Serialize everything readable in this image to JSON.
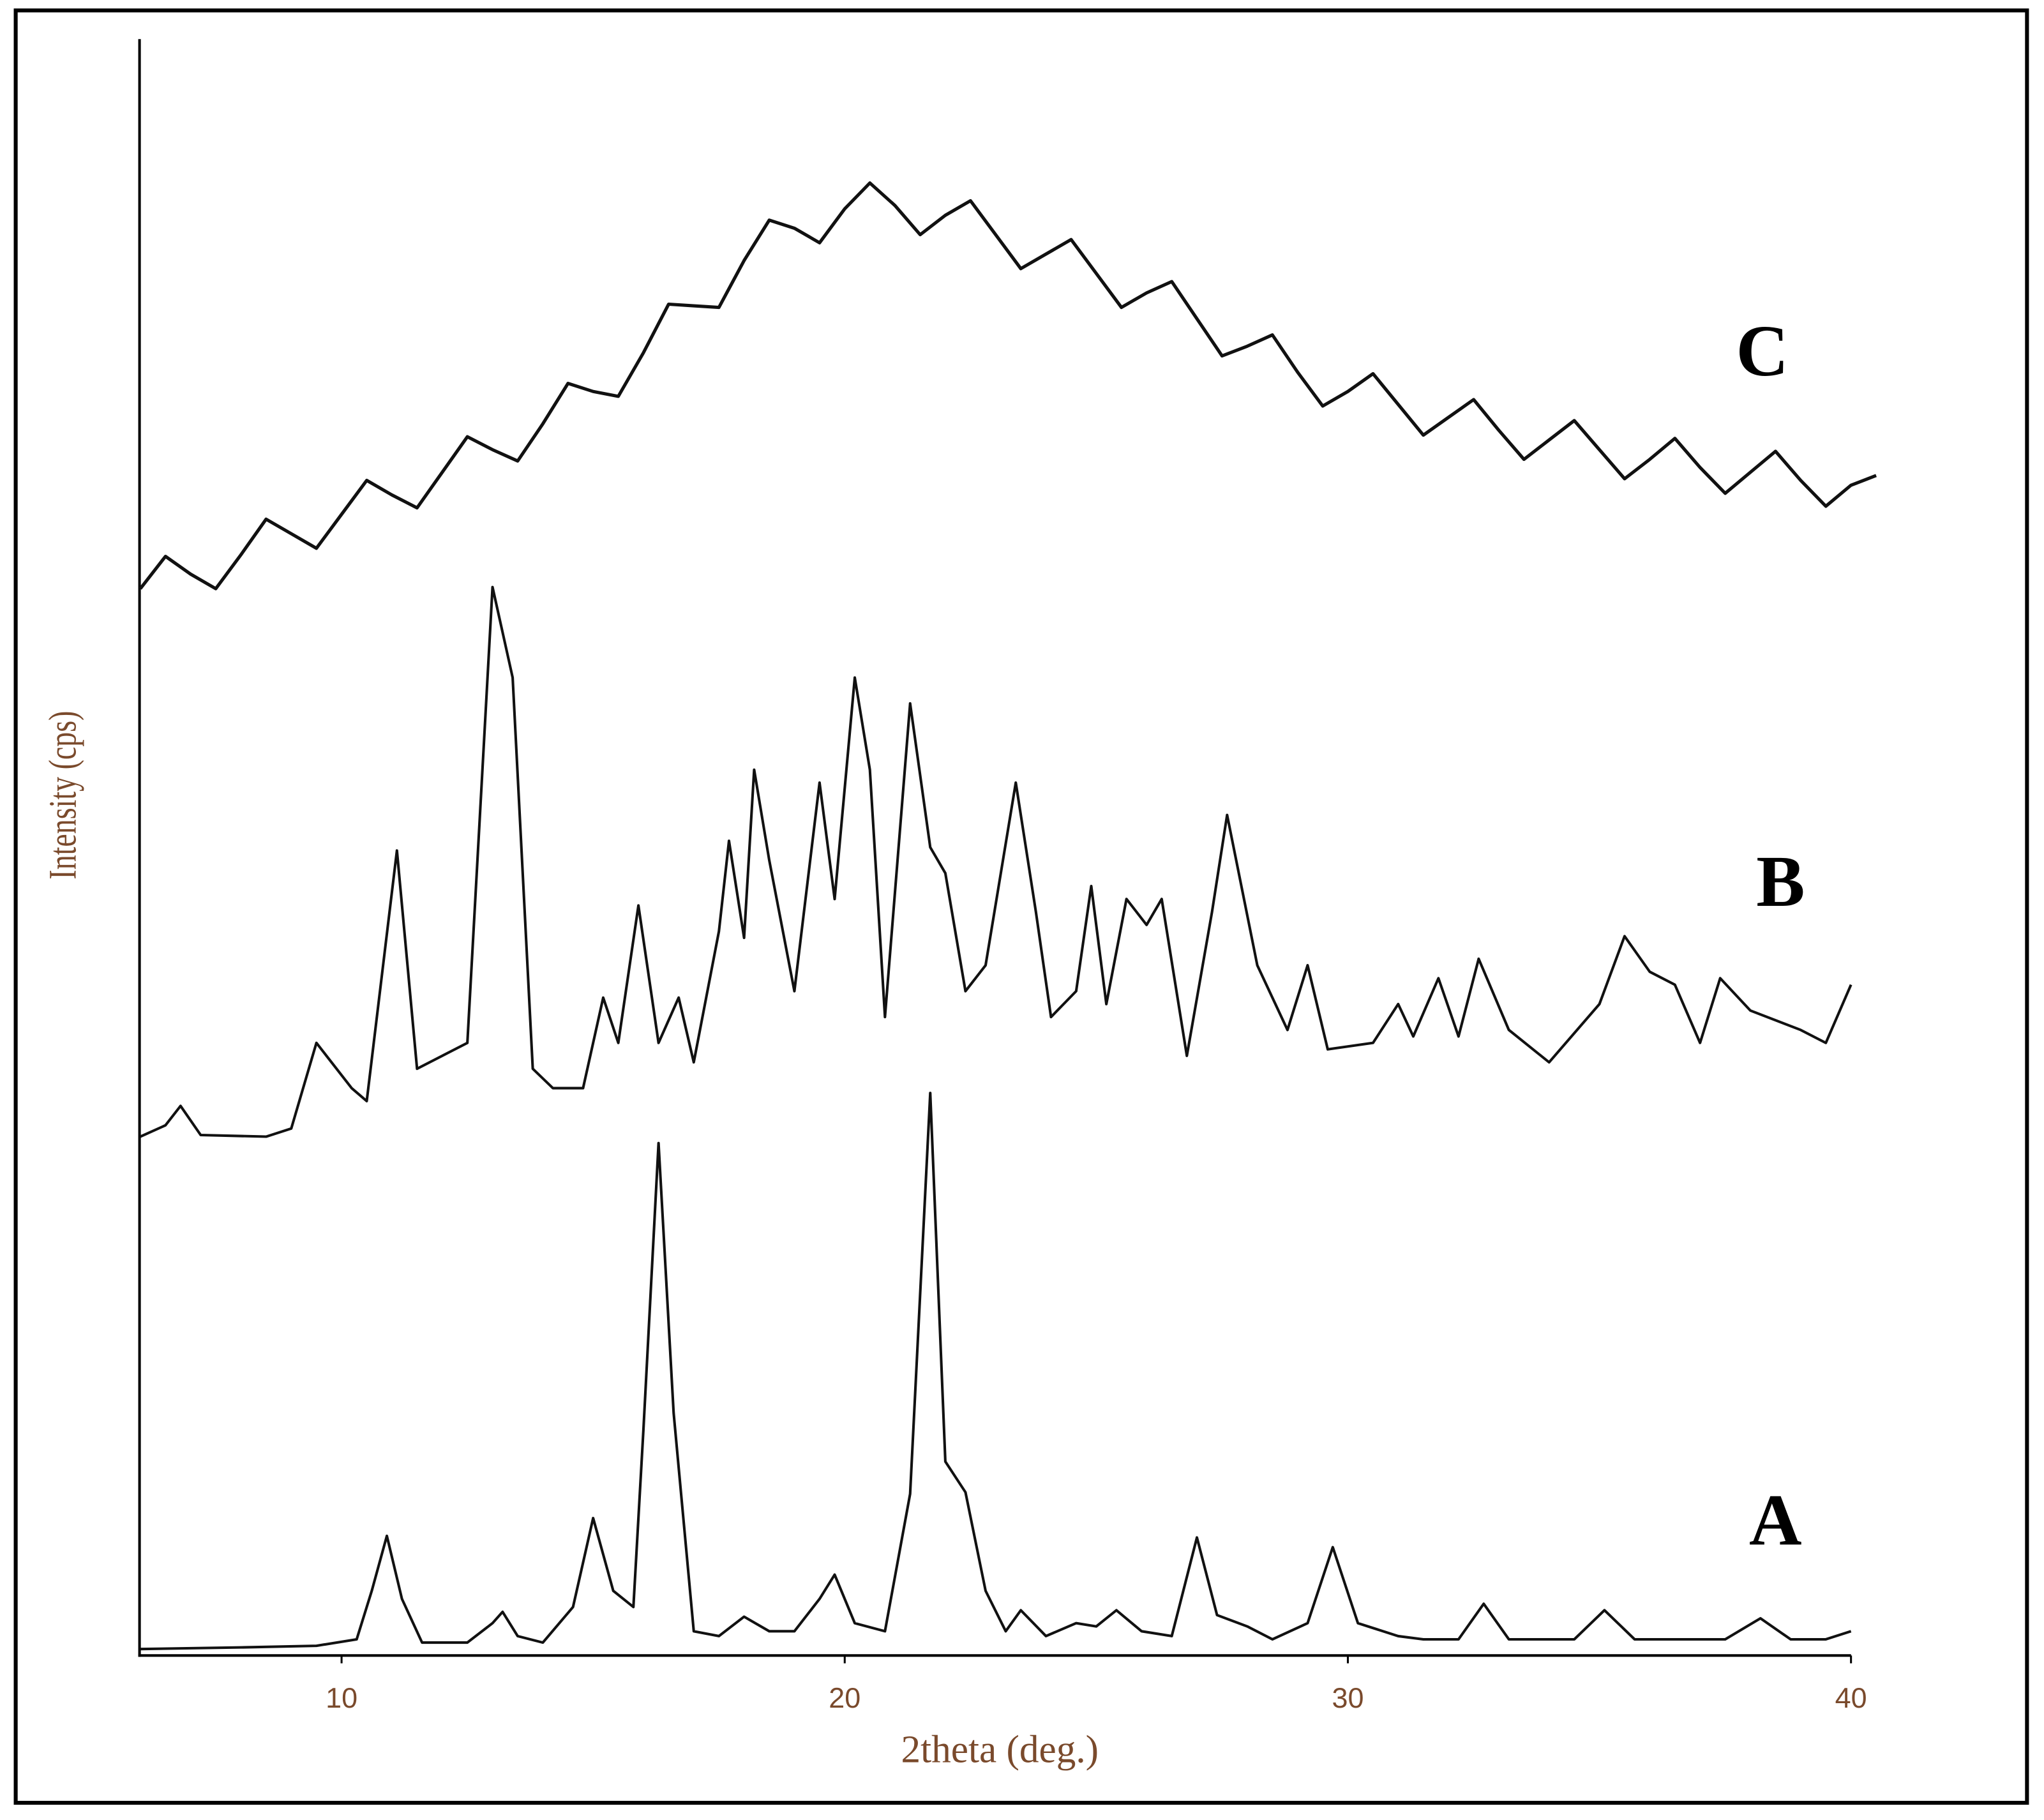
{
  "chart_data": {
    "type": "line",
    "xlabel": "2theta (deg.)",
    "ylabel": "Intensity (cps)",
    "xlim": [
      6,
      40.7
    ],
    "xticks": [
      10,
      20,
      30,
      40
    ],
    "ylim": [
      0,
      100
    ],
    "series": [
      {
        "name": "A",
        "color": "#111111",
        "x": [
          6,
          8,
          9.5,
          10.3,
          10.6,
          10.9,
          11.2,
          11.6,
          12.5,
          13.0,
          13.2,
          13.5,
          14.0,
          14.6,
          15.0,
          15.4,
          15.8,
          16.0,
          16.3,
          16.6,
          17.0,
          17.5,
          18.0,
          18.5,
          19.0,
          19.5,
          19.8,
          20.2,
          20.8,
          21.3,
          21.7,
          22.0,
          22.4,
          22.8,
          23.2,
          23.5,
          24.0,
          24.6,
          25.0,
          25.4,
          25.9,
          26.5,
          27.0,
          27.4,
          28.0,
          28.5,
          29.2,
          29.7,
          30.2,
          31.0,
          31.5,
          32.2,
          32.7,
          33.2,
          34.5,
          35.1,
          35.7,
          37.5,
          38.2,
          38.8,
          39.5,
          40
        ],
        "values": [
          0.4,
          0.5,
          0.6,
          1.0,
          4.0,
          7.4,
          3.5,
          0.8,
          0.8,
          2.0,
          2.7,
          1.2,
          0.8,
          3.0,
          8.5,
          4.0,
          3.0,
          14,
          31.7,
          15,
          1.5,
          1.2,
          2.4,
          1.5,
          1.5,
          3.5,
          5.0,
          2.0,
          1.5,
          10,
          34.8,
          12,
          10.1,
          4,
          1.5,
          2.8,
          1.2,
          2.0,
          1.8,
          2.8,
          1.5,
          1.2,
          7.3,
          2.5,
          1.8,
          1.0,
          2,
          6.7,
          2,
          1.2,
          1.0,
          1.0,
          3.2,
          1.0,
          1.0,
          2.8,
          1.0,
          1.0,
          2.3,
          1.0,
          1.0,
          1.5
        ]
      },
      {
        "name": "B",
        "color": "#111111",
        "x": [
          6,
          6.5,
          6.8,
          7.2,
          8.5,
          9.0,
          9.5,
          10.2,
          10.5,
          11.1,
          11.5,
          12.0,
          12.5,
          13.0,
          13.4,
          13.8,
          14.2,
          14.8,
          15.2,
          15.5,
          15.9,
          16.3,
          16.7,
          17.0,
          17.5,
          17.7,
          18.0,
          18.2,
          18.5,
          19.0,
          19.5,
          19.8,
          20.2,
          20.5,
          20.8,
          21.3,
          21.7,
          22.0,
          22.4,
          22.8,
          23.4,
          23.8,
          24.1,
          24.6,
          24.9,
          25.2,
          25.6,
          26.0,
          26.3,
          26.8,
          27.3,
          27.6,
          28.2,
          28.8,
          29.2,
          29.6,
          30.5,
          31.0,
          31.3,
          31.8,
          32.2,
          32.6,
          33.2,
          34.0,
          35.0,
          35.5,
          36.0,
          36.5,
          37.0,
          37.4,
          38.0,
          39.0,
          39.5,
          40.0
        ],
        "values": [
          32.1,
          32.8,
          34.0,
          32.2,
          32.1,
          32.6,
          37.9,
          35.1,
          34.3,
          49.8,
          36.3,
          37.1,
          37.9,
          66.1,
          60.5,
          36.3,
          35.1,
          35.1,
          40.7,
          37.9,
          46.4,
          37.9,
          40.7,
          36.7,
          44.8,
          50.4,
          44.4,
          54.8,
          49.2,
          41.1,
          54.0,
          46.8,
          60.5,
          54.8,
          39.5,
          58.9,
          50.0,
          48.4,
          41.1,
          42.7,
          54.0,
          46.0,
          39.5,
          41.1,
          47.6,
          40.3,
          46.8,
          45.2,
          46.8,
          37.1,
          46.0,
          52.0,
          42.7,
          38.7,
          42.7,
          37.5,
          37.9,
          40.3,
          38.3,
          41.9,
          38.3,
          43.1,
          38.7,
          36.7,
          40.3,
          44.5,
          42.3,
          41.5,
          37.9,
          41.9,
          39.9,
          38.7,
          37.9,
          41.5
        ]
      },
      {
        "name": "C",
        "color": "#111111",
        "x": [
          6,
          6.5,
          7,
          7.5,
          8,
          8.5,
          9,
          9.5,
          10,
          10.5,
          11,
          11.5,
          12,
          12.5,
          13,
          13.5,
          14,
          14.5,
          15,
          15.5,
          16,
          16.5,
          17,
          17.5,
          18,
          18.5,
          19,
          19.5,
          20,
          20.5,
          21,
          21.5,
          22,
          22.5,
          23,
          23.5,
          24,
          24.5,
          25,
          25.5,
          26,
          26.5,
          27,
          27.5,
          28,
          28.5,
          29,
          29.5,
          30,
          30.5,
          31,
          31.5,
          32,
          32.5,
          33,
          33.5,
          34,
          34.5,
          35,
          35.5,
          36,
          36.5,
          37,
          37.5,
          38,
          38.5,
          39,
          39.5,
          40,
          40.5
        ],
        "values": [
          66.0,
          68.0,
          66.9,
          66.0,
          68.1,
          70.3,
          69.4,
          68.5,
          70.6,
          72.7,
          71.8,
          71.0,
          73.2,
          75.4,
          74.6,
          73.9,
          76.2,
          78.7,
          78.2,
          77.9,
          80.6,
          83.6,
          83.5,
          83.4,
          86.3,
          88.8,
          88.3,
          87.4,
          89.5,
          91.1,
          89.7,
          87.9,
          89.1,
          90.0,
          87.9,
          85.8,
          86.7,
          87.6,
          85.5,
          83.4,
          84.3,
          85.0,
          82.7,
          80.4,
          81.0,
          81.7,
          79.4,
          77.3,
          78.2,
          79.3,
          77.4,
          75.5,
          76.6,
          77.7,
          75.8,
          74.0,
          75.2,
          76.4,
          74.6,
          72.8,
          74.0,
          75.3,
          73.5,
          71.9,
          73.2,
          74.5,
          72.7,
          71.1,
          72.4,
          73.0
        ]
      }
    ]
  }
}
